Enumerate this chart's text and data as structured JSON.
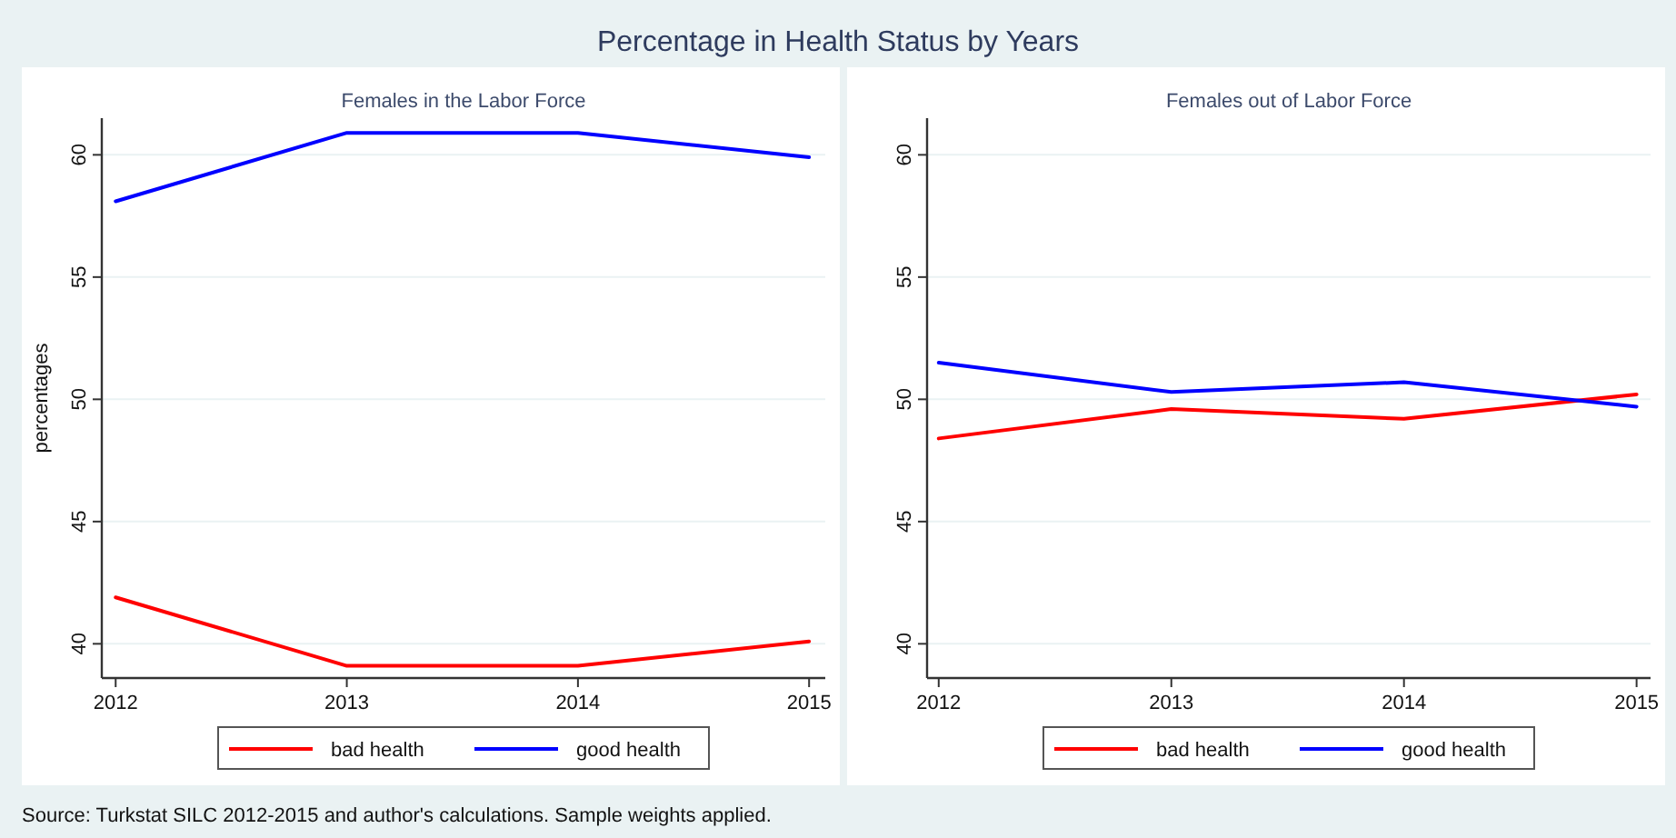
{
  "chart_data": [
    {
      "type": "line",
      "title": "Percentage in Health Status by Years",
      "subtitle": "Females in the Labor Force",
      "ylabel": "percentages",
      "x": [
        2012,
        2013,
        2014,
        2015
      ],
      "xlim": [
        2011.94,
        2015.07
      ],
      "xticks": [
        2012,
        2013,
        2014,
        2015
      ],
      "ylim": [
        38.6,
        61.5
      ],
      "yticks": [
        40,
        45,
        50,
        55,
        60
      ],
      "grid": "y",
      "legend": "bottom",
      "line_style": "solid",
      "series": [
        {
          "name": "bad health",
          "color": "#ff0000",
          "values": [
            41.9,
            39.1,
            39.1,
            40.1
          ]
        },
        {
          "name": "good health",
          "color": "#0000ff",
          "values": [
            58.1,
            60.9,
            60.9,
            59.9
          ]
        }
      ]
    },
    {
      "type": "line",
      "subtitle": "Females out of Labor Force",
      "x": [
        2012,
        2013,
        2014,
        2015
      ],
      "xlim": [
        2011.95,
        2015.06
      ],
      "xticks": [
        2012,
        2013,
        2014,
        2015
      ],
      "ylim": [
        38.6,
        61.5
      ],
      "yticks": [
        40,
        45,
        50,
        55,
        60
      ],
      "grid": "y",
      "legend": "bottom",
      "line_style": "solid",
      "annotations": [
        "Source: Turkstat SILC 2012-2015 and author's calculations. Sample weights applied."
      ],
      "series": [
        {
          "name": "bad health",
          "color": "#ff0000",
          "values": [
            48.4,
            49.6,
            49.2,
            50.2
          ]
        },
        {
          "name": "good health",
          "color": "#0000ff",
          "values": [
            51.5,
            50.3,
            50.7,
            49.7
          ]
        }
      ]
    }
  ]
}
